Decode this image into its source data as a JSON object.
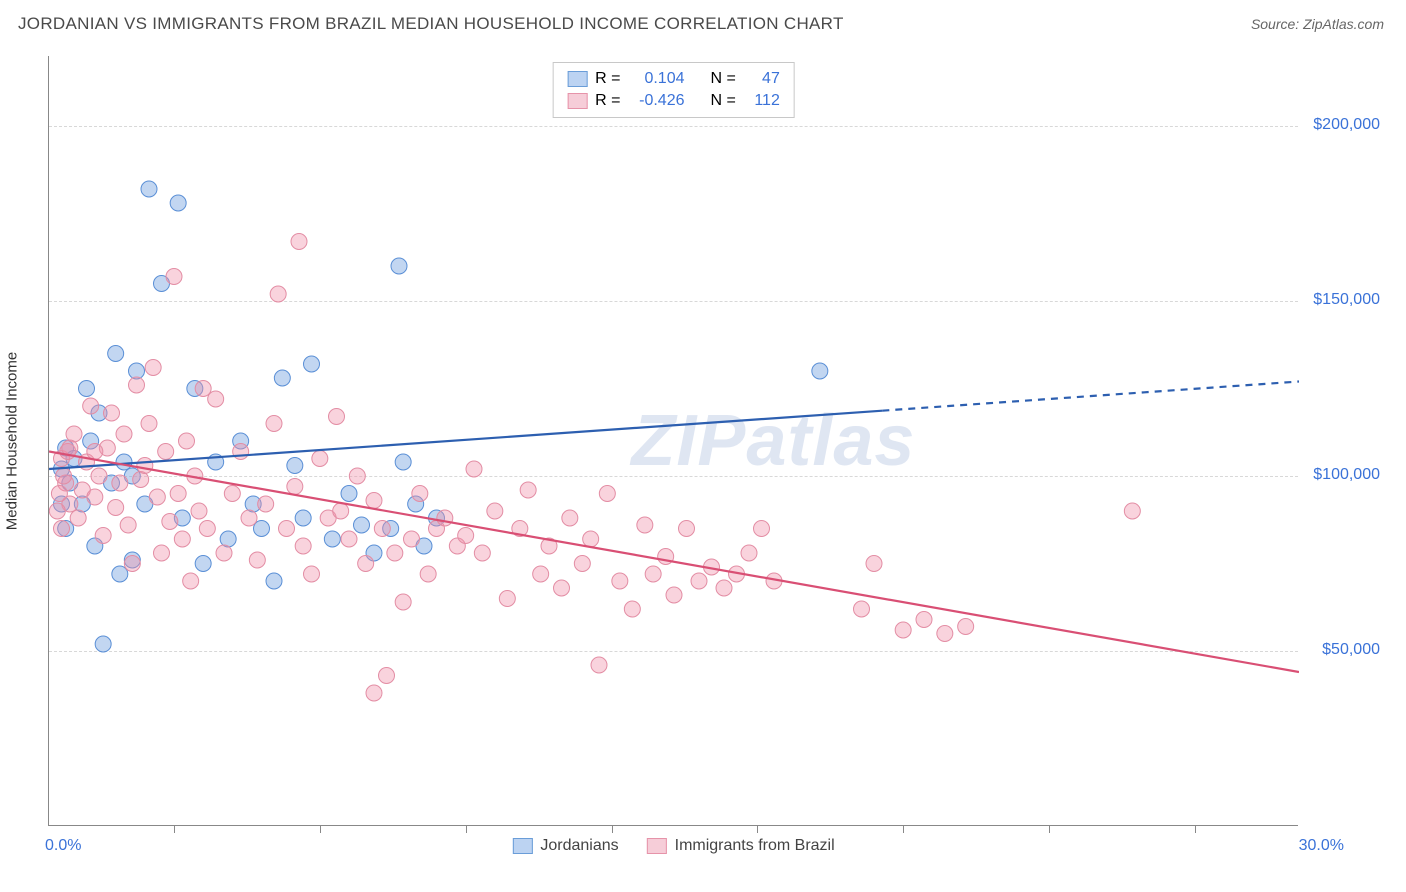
{
  "header": {
    "title": "JORDANIAN VS IMMIGRANTS FROM BRAZIL MEDIAN HOUSEHOLD INCOME CORRELATION CHART",
    "source_prefix": "Source: ",
    "source_name": "ZipAtlas.com"
  },
  "chart": {
    "type": "scatter",
    "watermark": "ZIPatlas",
    "background_color": "#ffffff",
    "grid_color": "#d8d8d8",
    "axis_color": "#888888",
    "ylabel": "Median Household Income",
    "ylabel_fontsize": 15,
    "xlim": [
      0,
      30
    ],
    "ylim": [
      0,
      220000
    ],
    "ytick_values": [
      50000,
      100000,
      150000,
      200000
    ],
    "ytick_labels": [
      "$50,000",
      "$100,000",
      "$150,000",
      "$200,000"
    ],
    "xtick_positions": [
      3,
      6.5,
      10,
      13.5,
      17,
      20.5,
      24,
      27.5
    ],
    "xaxis_labels": {
      "left": "0.0%",
      "right": "30.0%"
    },
    "tick_label_color": "#3a72d8",
    "tick_label_fontsize": 16
  },
  "series": [
    {
      "name": "Jordanians",
      "fill_color": "rgba(120,165,225,0.45)",
      "stroke_color": "#5a8fd6",
      "swatch_fill": "#bcd3f2",
      "swatch_border": "#6a9dd8",
      "line_color": "#2d5fb0",
      "R": "0.104",
      "N": "47",
      "marker_radius": 8,
      "trend": {
        "x1": 0,
        "y1": 102000,
        "x2": 30,
        "y2": 127000,
        "dash_from_x": 20
      },
      "points": [
        [
          0.3,
          102000
        ],
        [
          0.4,
          108000
        ],
        [
          0.5,
          98000
        ],
        [
          0.6,
          105000
        ],
        [
          0.8,
          92000
        ],
        [
          1.0,
          110000
        ],
        [
          1.1,
          80000
        ],
        [
          1.2,
          118000
        ],
        [
          1.6,
          135000
        ],
        [
          1.8,
          104000
        ],
        [
          2.0,
          76000
        ],
        [
          2.1,
          130000
        ],
        [
          2.3,
          92000
        ],
        [
          2.4,
          182000
        ],
        [
          2.7,
          155000
        ],
        [
          3.1,
          178000
        ],
        [
          3.2,
          88000
        ],
        [
          3.5,
          125000
        ],
        [
          3.7,
          75000
        ],
        [
          4.0,
          104000
        ],
        [
          4.3,
          82000
        ],
        [
          4.6,
          110000
        ],
        [
          4.9,
          92000
        ],
        [
          5.1,
          85000
        ],
        [
          5.4,
          70000
        ],
        [
          5.6,
          128000
        ],
        [
          5.9,
          103000
        ],
        [
          6.1,
          88000
        ],
        [
          6.3,
          132000
        ],
        [
          6.8,
          82000
        ],
        [
          7.2,
          95000
        ],
        [
          7.5,
          86000
        ],
        [
          7.8,
          78000
        ],
        [
          8.2,
          85000
        ],
        [
          8.4,
          160000
        ],
        [
          8.5,
          104000
        ],
        [
          8.8,
          92000
        ],
        [
          9.0,
          80000
        ],
        [
          9.3,
          88000
        ],
        [
          1.3,
          52000
        ],
        [
          1.5,
          98000
        ],
        [
          0.9,
          125000
        ],
        [
          0.3,
          92000
        ],
        [
          0.4,
          85000
        ],
        [
          18.5,
          130000
        ],
        [
          2.0,
          100000
        ],
        [
          1.7,
          72000
        ]
      ]
    },
    {
      "name": "Immigrants from Brazil",
      "fill_color": "rgba(240,145,170,0.40)",
      "stroke_color": "#e38da4",
      "swatch_fill": "#f6cdd8",
      "swatch_border": "#e693a9",
      "line_color": "#d94f74",
      "R": "-0.426",
      "N": "112",
      "marker_radius": 8,
      "trend": {
        "x1": 0,
        "y1": 107000,
        "x2": 30,
        "y2": 44000,
        "dash_from_x": null
      },
      "points": [
        [
          0.3,
          105000
        ],
        [
          0.4,
          98000
        ],
        [
          0.5,
          92000
        ],
        [
          0.6,
          112000
        ],
        [
          0.7,
          88000
        ],
        [
          0.8,
          96000
        ],
        [
          0.9,
          104000
        ],
        [
          1.0,
          120000
        ],
        [
          1.1,
          94000
        ],
        [
          1.2,
          100000
        ],
        [
          1.3,
          83000
        ],
        [
          1.4,
          108000
        ],
        [
          1.5,
          118000
        ],
        [
          1.6,
          91000
        ],
        [
          1.7,
          98000
        ],
        [
          1.8,
          112000
        ],
        [
          1.9,
          86000
        ],
        [
          2.0,
          75000
        ],
        [
          2.1,
          126000
        ],
        [
          2.2,
          99000
        ],
        [
          2.3,
          103000
        ],
        [
          2.4,
          115000
        ],
        [
          2.5,
          131000
        ],
        [
          2.6,
          94000
        ],
        [
          2.7,
          78000
        ],
        [
          2.8,
          107000
        ],
        [
          2.9,
          87000
        ],
        [
          3.0,
          157000
        ],
        [
          3.1,
          95000
        ],
        [
          3.2,
          82000
        ],
        [
          3.3,
          110000
        ],
        [
          3.4,
          70000
        ],
        [
          3.5,
          100000
        ],
        [
          3.6,
          90000
        ],
        [
          3.7,
          125000
        ],
        [
          3.8,
          85000
        ],
        [
          4.0,
          122000
        ],
        [
          4.2,
          78000
        ],
        [
          4.4,
          95000
        ],
        [
          4.6,
          107000
        ],
        [
          4.8,
          88000
        ],
        [
          5.0,
          76000
        ],
        [
          5.2,
          92000
        ],
        [
          5.4,
          115000
        ],
        [
          5.5,
          152000
        ],
        [
          5.7,
          85000
        ],
        [
          5.9,
          97000
        ],
        [
          6.0,
          167000
        ],
        [
          6.1,
          80000
        ],
        [
          6.3,
          72000
        ],
        [
          6.5,
          105000
        ],
        [
          6.7,
          88000
        ],
        [
          6.9,
          117000
        ],
        [
          7.0,
          90000
        ],
        [
          7.2,
          82000
        ],
        [
          7.4,
          100000
        ],
        [
          7.6,
          75000
        ],
        [
          7.8,
          38000
        ],
        [
          7.8,
          93000
        ],
        [
          8.0,
          85000
        ],
        [
          8.1,
          43000
        ],
        [
          8.3,
          78000
        ],
        [
          8.5,
          64000
        ],
        [
          8.7,
          82000
        ],
        [
          8.9,
          95000
        ],
        [
          9.1,
          72000
        ],
        [
          9.3,
          85000
        ],
        [
          9.5,
          88000
        ],
        [
          9.8,
          80000
        ],
        [
          10.0,
          83000
        ],
        [
          10.2,
          102000
        ],
        [
          10.4,
          78000
        ],
        [
          10.7,
          90000
        ],
        [
          11.0,
          65000
        ],
        [
          11.3,
          85000
        ],
        [
          11.5,
          96000
        ],
        [
          11.8,
          72000
        ],
        [
          12.0,
          80000
        ],
        [
          12.3,
          68000
        ],
        [
          12.5,
          88000
        ],
        [
          12.8,
          75000
        ],
        [
          13.0,
          82000
        ],
        [
          13.2,
          46000
        ],
        [
          13.4,
          95000
        ],
        [
          13.7,
          70000
        ],
        [
          14.0,
          62000
        ],
        [
          14.3,
          86000
        ],
        [
          14.5,
          72000
        ],
        [
          14.8,
          77000
        ],
        [
          15.0,
          66000
        ],
        [
          15.3,
          85000
        ],
        [
          15.6,
          70000
        ],
        [
          15.9,
          74000
        ],
        [
          16.2,
          68000
        ],
        [
          16.5,
          72000
        ],
        [
          16.8,
          78000
        ],
        [
          17.1,
          85000
        ],
        [
          17.4,
          70000
        ],
        [
          19.5,
          62000
        ],
        [
          19.8,
          75000
        ],
        [
          20.5,
          56000
        ],
        [
          21.0,
          59000
        ],
        [
          21.5,
          55000
        ],
        [
          22.0,
          57000
        ],
        [
          26.0,
          90000
        ],
        [
          0.2,
          90000
        ],
        [
          0.25,
          95000
        ],
        [
          0.35,
          100000
        ],
        [
          0.45,
          107000
        ],
        [
          0.3,
          85000
        ],
        [
          0.5,
          108000
        ],
        [
          1.1,
          107000
        ]
      ]
    }
  ],
  "legend_top": {
    "R_label": "R =",
    "N_label": "N ="
  },
  "legend_bottom": {
    "items": [
      "Jordanians",
      "Immigrants from Brazil"
    ]
  }
}
